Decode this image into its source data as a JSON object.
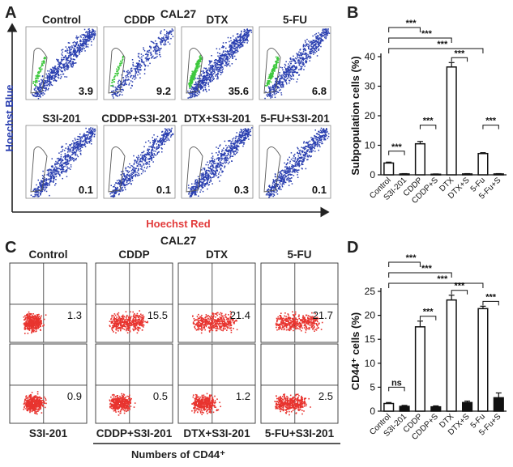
{
  "panels": {
    "a": "A",
    "b": "B",
    "c": "C",
    "d": "D"
  },
  "top_title": "CAL27",
  "bottom_title": "CAL27",
  "panel_a": {
    "y_axis": "Hoechst Blue",
    "x_axis": "Hoechst Red",
    "plots": [
      {
        "label": "Control",
        "value": "3.9"
      },
      {
        "label": "CDDP",
        "value": "9.2"
      },
      {
        "label": "DTX",
        "value": "35.6"
      },
      {
        "label": "5-FU",
        "value": "6.8"
      },
      {
        "label": "S3I-201",
        "value": "0.1"
      },
      {
        "label": "CDDP+S3I-201",
        "value": "0.1"
      },
      {
        "label": "DTX+S3I-201",
        "value": "0.3"
      },
      {
        "label": "5-FU+S3I-201",
        "value": "0.1"
      }
    ],
    "colors": {
      "dots": "#2a3fb0",
      "gate": "#3ec83e",
      "axis_blue": "#2a3fb0",
      "axis_red": "#e23a3a"
    }
  },
  "panel_c": {
    "x_axis": "Numbers of CD44⁺",
    "plots": [
      {
        "label": "Control",
        "value": "1.3"
      },
      {
        "label": "CDDP",
        "value": "15.5"
      },
      {
        "label": "DTX",
        "value": "21.4"
      },
      {
        "label": "5-FU",
        "value": "21.7"
      },
      {
        "label": "S3I-201",
        "value": "0.9"
      },
      {
        "label": "CDDP+S3I-201",
        "value": "0.5"
      },
      {
        "label": "DTX+S3I-201",
        "value": "1.2"
      },
      {
        "label": "5-FU+S3I-201",
        "value": "2.5"
      }
    ],
    "colors": {
      "dots": "#e8342f"
    }
  },
  "chart_data": [
    {
      "type": "bar",
      "panel": "B",
      "ylabel": "Subpopulation cells (%)",
      "categories": [
        "Control",
        "S3I-201",
        "CDDP",
        "CDDP+S",
        "DTX",
        "DTX+S",
        "5-Fu",
        "5-Fu+S"
      ],
      "values": [
        4.0,
        0.3,
        10.5,
        0.2,
        36.5,
        0.3,
        7.2,
        0.3
      ],
      "errors": [
        0.3,
        0.1,
        0.8,
        0.1,
        1.5,
        0.1,
        0.3,
        0.1
      ],
      "fills": [
        "white",
        "black",
        "white",
        "black",
        "white",
        "black",
        "white",
        "black"
      ],
      "ylim": [
        0,
        40
      ],
      "yticks": [
        "0",
        "10",
        "20",
        "30",
        "40"
      ],
      "significance": [
        {
          "a": 0,
          "b": 1,
          "label": "***"
        },
        {
          "a": 2,
          "b": 3,
          "label": "***"
        },
        {
          "a": 4,
          "b": 5,
          "label": "***"
        },
        {
          "a": 6,
          "b": 7,
          "label": "***"
        },
        {
          "a": 0,
          "b": 2,
          "label": "***"
        },
        {
          "a": 0,
          "b": 4,
          "label": "***"
        },
        {
          "a": 0,
          "b": 6,
          "label": "***"
        }
      ]
    },
    {
      "type": "bar",
      "panel": "D",
      "ylabel": "CD44⁺ cells (%)",
      "categories": [
        "Control",
        "S3I-201",
        "CDDP",
        "CDDP+S",
        "DTX",
        "DTX+S",
        "5-Fu",
        "5-Fu+S"
      ],
      "values": [
        1.6,
        1.0,
        17.6,
        0.9,
        23.2,
        1.8,
        21.4,
        2.8
      ],
      "errors": [
        0.2,
        0.2,
        1.2,
        0.2,
        1.0,
        0.3,
        0.5,
        1.0
      ],
      "fills": [
        "white",
        "black",
        "white",
        "black",
        "white",
        "black",
        "white",
        "black"
      ],
      "ylim": [
        0,
        25
      ],
      "yticks": [
        "0",
        "5",
        "10",
        "15",
        "20",
        "25"
      ],
      "significance": [
        {
          "a": 0,
          "b": 1,
          "label": "ns"
        },
        {
          "a": 2,
          "b": 3,
          "label": "***"
        },
        {
          "a": 4,
          "b": 5,
          "label": "***"
        },
        {
          "a": 6,
          "b": 7,
          "label": "***"
        },
        {
          "a": 0,
          "b": 2,
          "label": "***"
        },
        {
          "a": 0,
          "b": 4,
          "label": "***"
        },
        {
          "a": 0,
          "b": 6,
          "label": "***"
        }
      ]
    }
  ]
}
